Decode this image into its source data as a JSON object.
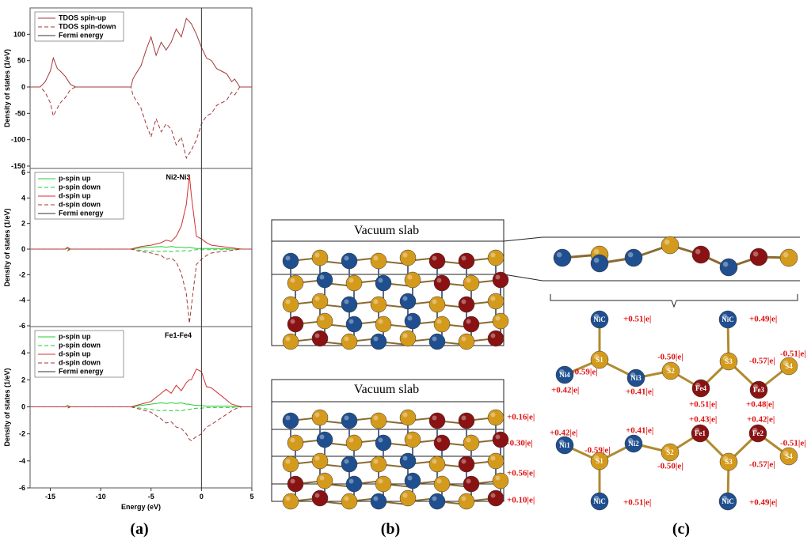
{
  "chart_data": [
    {
      "type": "line",
      "ylabel": "Density of states (1/eV)",
      "xlim": [
        -17,
        5
      ],
      "ylim": [
        -150,
        150
      ],
      "yticks": [
        -150,
        -100,
        -50,
        0,
        50,
        100
      ],
      "x": [
        -17,
        -16,
        -15.5,
        -15,
        -14.7,
        -14.3,
        -14,
        -13.5,
        -13,
        -12.5,
        -7,
        -6.8,
        -6.5,
        -6,
        -5.5,
        -5,
        -4.5,
        -4,
        -3.5,
        -3,
        -2.5,
        -2,
        -1.5,
        -1,
        -0.5,
        0,
        0.5,
        1,
        1.5,
        2,
        2.5,
        3,
        3.3,
        3.8,
        5
      ],
      "series": [
        {
          "name": "TDOS spin-up",
          "color": "#a33a3a",
          "style": "solid",
          "values": [
            0,
            0,
            10,
            30,
            55,
            35,
            30,
            20,
            5,
            0,
            0,
            15,
            25,
            40,
            70,
            95,
            60,
            85,
            70,
            85,
            110,
            95,
            130,
            120,
            100,
            75,
            55,
            50,
            35,
            30,
            25,
            10,
            15,
            0,
            0
          ]
        },
        {
          "name": "TDOS spin-down",
          "color": "#a33a3a",
          "style": "dashed",
          "values": [
            0,
            0,
            -10,
            -30,
            -55,
            -40,
            -30,
            -20,
            -5,
            0,
            0,
            -15,
            -25,
            -40,
            -70,
            -95,
            -60,
            -85,
            -70,
            -80,
            -110,
            -95,
            -135,
            -120,
            -100,
            -70,
            -55,
            -50,
            -35,
            -30,
            -25,
            -10,
            -15,
            0,
            0
          ]
        }
      ],
      "fermi": {
        "name": "Fermi energy",
        "x": 0
      }
    },
    {
      "type": "line",
      "title": "Ni2-Ni3",
      "ylabel": "Density of states (1/eV)",
      "xlim": [
        -17,
        5
      ],
      "ylim": [
        -6,
        6
      ],
      "yticks": [
        -6,
        -4,
        -2,
        0,
        2,
        4,
        6
      ],
      "x": [
        -17,
        -14,
        -13.5,
        -13.3,
        -13,
        -7,
        -6,
        -5,
        -4,
        -3.5,
        -3,
        -2.5,
        -2,
        -1.5,
        -1.2,
        -1,
        -0.5,
        0,
        0.5,
        1,
        2,
        3,
        3.5,
        4,
        5
      ],
      "series": [
        {
          "name": "p-spin up",
          "color": "#22cc33",
          "style": "solid",
          "values": [
            0,
            0,
            0,
            0.05,
            0,
            0,
            0.1,
            0.15,
            0.2,
            0.15,
            0.2,
            0.15,
            0.15,
            0.1,
            0.15,
            0.1,
            0.05,
            0.05,
            0.05,
            0.05,
            0.05,
            0,
            0,
            0,
            0
          ]
        },
        {
          "name": "p-spin down",
          "color": "#22cc33",
          "style": "dashed",
          "values": [
            0,
            0,
            0,
            -0.05,
            0,
            0,
            -0.1,
            -0.15,
            -0.2,
            -0.15,
            -0.2,
            -0.15,
            -0.15,
            -0.1,
            -0.15,
            -0.1,
            -0.05,
            -0.05,
            -0.05,
            -0.05,
            -0.05,
            0,
            0,
            0,
            0
          ]
        },
        {
          "name": "d-spin up",
          "color": "#d03030",
          "style": "solid",
          "values": [
            0,
            0,
            0,
            0.15,
            0,
            0,
            0.2,
            0.3,
            0.5,
            0.7,
            0.6,
            1.0,
            1.8,
            3.5,
            5.8,
            4.2,
            1.0,
            0.8,
            0.5,
            0.3,
            0.2,
            0.1,
            0.05,
            0,
            0
          ]
        },
        {
          "name": "d-spin down",
          "color": "#a33a3a",
          "style": "dashed",
          "values": [
            0,
            0,
            0,
            -0.15,
            0,
            0,
            -0.2,
            -0.3,
            -0.5,
            -0.8,
            -0.7,
            -1.0,
            -1.9,
            -3.5,
            -5.8,
            -4.5,
            -1.2,
            -0.8,
            -0.5,
            -0.3,
            -0.2,
            -0.1,
            -0.05,
            0,
            0
          ]
        }
      ],
      "fermi": {
        "name": "Fermi energy",
        "x": 0
      }
    },
    {
      "type": "line",
      "title": "Fe1-Fe4",
      "ylabel": "Density of states (1/eV)",
      "xlabel": "Energy (eV)",
      "xlim": [
        -17,
        5
      ],
      "ylim": [
        -6,
        6
      ],
      "yticks": [
        -6,
        -4,
        -2,
        0,
        2,
        4
      ],
      "xticks": [
        -15,
        -10,
        -5,
        0,
        5
      ],
      "x": [
        -17,
        -14,
        -13.5,
        -13.3,
        -13,
        -7,
        -6,
        -5,
        -4,
        -3.5,
        -3,
        -2.5,
        -2,
        -1.5,
        -1.2,
        -1,
        -0.5,
        0,
        0.5,
        1,
        2,
        3,
        3.5,
        4,
        5
      ],
      "series": [
        {
          "name": "p-spin up",
          "color": "#22cc33",
          "style": "solid",
          "values": [
            0,
            0,
            0,
            0.05,
            0,
            0,
            0.1,
            0.2,
            0.3,
            0.25,
            0.3,
            0.25,
            0.3,
            0.2,
            0.2,
            0.15,
            0.1,
            0.1,
            0.05,
            0.05,
            0.05,
            0.05,
            0,
            0,
            0
          ]
        },
        {
          "name": "p-spin down",
          "color": "#22cc33",
          "style": "dashed",
          "values": [
            0,
            0,
            0,
            -0.05,
            0,
            0,
            -0.1,
            -0.2,
            -0.3,
            -0.25,
            -0.3,
            -0.25,
            -0.3,
            -0.2,
            -0.2,
            -0.15,
            -0.1,
            -0.1,
            -0.05,
            -0.05,
            -0.05,
            -0.05,
            0,
            0,
            0
          ]
        },
        {
          "name": "d-spin up",
          "color": "#d03030",
          "style": "solid",
          "values": [
            0,
            0,
            0,
            0.1,
            0,
            0,
            0.2,
            0.4,
            1.0,
            1.3,
            1.0,
            1.6,
            1.2,
            1.8,
            2.0,
            2.0,
            2.8,
            2.6,
            1.5,
            1.4,
            0.8,
            0.2,
            0.1,
            0,
            0
          ]
        },
        {
          "name": "d-spin down",
          "color": "#a33a3a",
          "style": "dashed",
          "values": [
            0,
            0,
            0,
            -0.1,
            0,
            0,
            -0.2,
            -0.4,
            -0.9,
            -1.2,
            -1.1,
            -1.5,
            -1.6,
            -2.0,
            -2.4,
            -2.5,
            -2.2,
            -2.0,
            -1.5,
            -1.3,
            -0.8,
            -0.3,
            -0.1,
            0,
            0
          ]
        }
      ],
      "fermi": {
        "name": "Fermi energy",
        "x": 0
      }
    }
  ],
  "panels": {
    "a": "(a)",
    "b": "(b)",
    "c": "(c)"
  },
  "slab": {
    "top_label": "Vacuum slab",
    "bottom_label": "Vacuum slab",
    "layer_charges": [
      "+0.16|e|",
      "-0.30|e|",
      "+0.56|e|",
      "+0.10|e|"
    ]
  },
  "structure": {
    "top": [
      {
        "label": "NiC",
        "charge": "+0.51|e|"
      },
      {
        "label": "S1",
        "charge": "-0.59|e|"
      },
      {
        "label": "Ni4",
        "charge": "+0.42|e|"
      },
      {
        "label": "Ni3",
        "charge": "+0.41|e|"
      },
      {
        "label": "S2",
        "charge": "-0.50|e|"
      },
      {
        "label": "Fe4",
        "charge": "+0.51|e|"
      },
      {
        "label": "NiC",
        "charge": "+0.49|e|"
      },
      {
        "label": "S3",
        "charge": "-0.57|e|"
      },
      {
        "label": "Fe3",
        "charge": "+0.48|e|"
      },
      {
        "label": "S4",
        "charge": "-0.51|e|"
      }
    ],
    "bottom": [
      {
        "label": "Ni1",
        "charge": "+0.42|e|"
      },
      {
        "label": "S1",
        "charge": "-0.59|e|"
      },
      {
        "label": "Ni2",
        "charge": "+0.41|e|"
      },
      {
        "label": "S2",
        "charge": "-0.50|e|"
      },
      {
        "label": "Fe1",
        "charge": "+0.43|e|"
      },
      {
        "label": "Fe2",
        "charge": "+0.42|e|"
      },
      {
        "label": "S3",
        "charge": "-0.57|e|"
      },
      {
        "label": "S4",
        "charge": "-0.51|e|"
      },
      {
        "label": "NiC",
        "charge": "+0.51|e|"
      },
      {
        "label": "NiC",
        "charge": "+0.49|e|"
      }
    ]
  }
}
